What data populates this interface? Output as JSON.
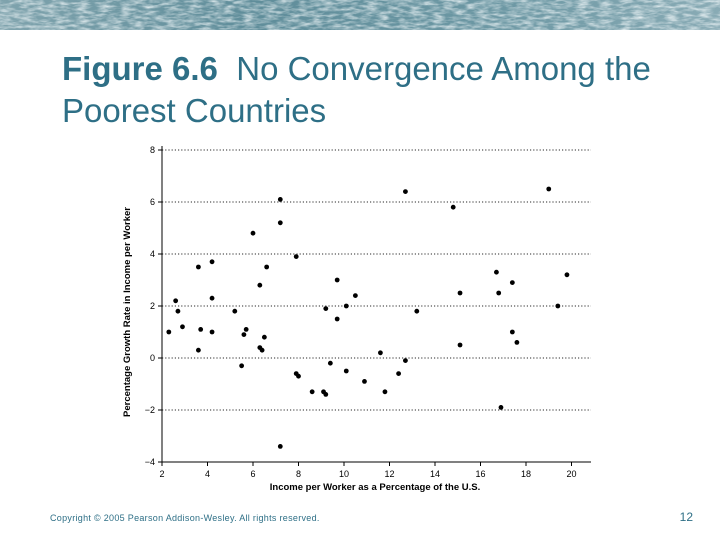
{
  "slide": {
    "title_label": "Figure 6.6",
    "title_text": "No Convergence Among the Poorest Countries",
    "footer": "Copyright © 2005 Pearson Addison-Wesley. All rights reserved.",
    "page_number": "12",
    "accent_color": "#2e6f86"
  },
  "chart_data": {
    "type": "scatter",
    "title": "",
    "xlabel": "Income per Worker as a Percentage of the U.S.",
    "ylabel": "Percentage Growth Rate in Income per Worker",
    "xlim": [
      2,
      20.5
    ],
    "ylim": [
      -4,
      8
    ],
    "xticks": [
      2,
      4,
      6,
      8,
      10,
      12,
      14,
      16,
      18,
      20
    ],
    "yticks": [
      -4,
      -2,
      0,
      2,
      4,
      6,
      8
    ],
    "ytick_labels": [
      "−4",
      "−2",
      "0",
      "2",
      "4",
      "6",
      "8"
    ],
    "grid": "horizontal dotted",
    "series": [
      {
        "name": "countries",
        "points": [
          [
            2.3,
            1.0
          ],
          [
            2.6,
            2.2
          ],
          [
            2.7,
            1.8
          ],
          [
            2.9,
            1.2
          ],
          [
            3.6,
            3.5
          ],
          [
            3.6,
            0.3
          ],
          [
            3.7,
            1.1
          ],
          [
            4.2,
            3.7
          ],
          [
            4.2,
            2.3
          ],
          [
            4.2,
            1.0
          ],
          [
            5.2,
            1.8
          ],
          [
            5.5,
            -0.3
          ],
          [
            5.6,
            0.9
          ],
          [
            5.7,
            1.1
          ],
          [
            6.0,
            4.8
          ],
          [
            6.3,
            0.4
          ],
          [
            6.3,
            2.8
          ],
          [
            6.4,
            0.3
          ],
          [
            6.5,
            0.8
          ],
          [
            6.6,
            3.5
          ],
          [
            7.2,
            6.1
          ],
          [
            7.2,
            5.2
          ],
          [
            7.2,
            -3.4
          ],
          [
            7.9,
            3.9
          ],
          [
            7.9,
            -0.6
          ],
          [
            8.0,
            -0.7
          ],
          [
            8.6,
            -1.3
          ],
          [
            9.1,
            -1.3
          ],
          [
            9.2,
            -1.4
          ],
          [
            9.2,
            1.9
          ],
          [
            9.4,
            -0.2
          ],
          [
            9.7,
            3.0
          ],
          [
            9.7,
            1.5
          ],
          [
            10.1,
            2.0
          ],
          [
            10.1,
            -0.5
          ],
          [
            10.5,
            2.4
          ],
          [
            10.9,
            -0.9
          ],
          [
            11.6,
            0.2
          ],
          [
            11.8,
            -1.3
          ],
          [
            12.4,
            -0.6
          ],
          [
            12.7,
            -0.1
          ],
          [
            12.7,
            6.4
          ],
          [
            13.2,
            1.8
          ],
          [
            14.8,
            5.8
          ],
          [
            15.1,
            2.5
          ],
          [
            15.1,
            0.5
          ],
          [
            16.7,
            3.3
          ],
          [
            16.8,
            2.5
          ],
          [
            16.9,
            -1.9
          ],
          [
            17.4,
            2.9
          ],
          [
            17.4,
            1.0
          ],
          [
            17.6,
            0.6
          ],
          [
            19.0,
            6.5
          ],
          [
            19.4,
            2.0
          ],
          [
            19.8,
            3.2
          ]
        ]
      }
    ]
  }
}
